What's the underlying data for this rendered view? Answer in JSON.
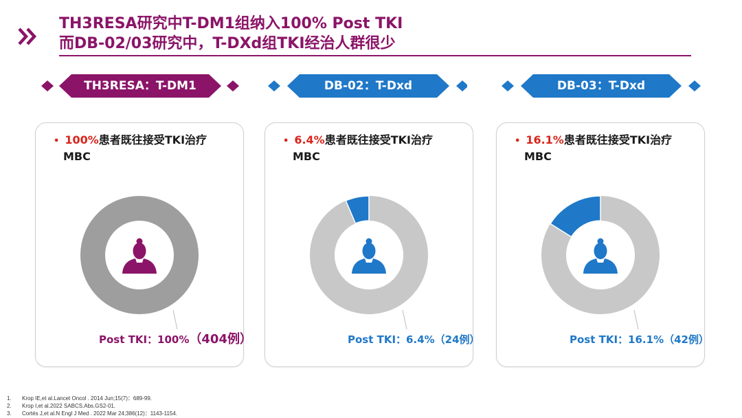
{
  "header": {
    "title_line1": "TH3RESA研究中T-DM1组纳入100%  Post TKI",
    "title_line2": "而DB-02/03研究中，T-DXd组TKI经治人群很少",
    "accent_color": "#8B1468"
  },
  "chart_data": [
    {
      "type": "pie",
      "banner": "TH3RESA：T-DM1",
      "bullet_pct": "100%",
      "bullet_text": "患者既往接受TKI治疗",
      "bullet_line2": "MBC",
      "slices": [
        {
          "label": "Post TKI",
          "value": 100
        }
      ],
      "post_label": "Post TKI：100%",
      "post_count": "（404例）",
      "color": "#8B1468",
      "ring_color": "#9E9E9E"
    },
    {
      "type": "pie",
      "banner": "DB-02：T-Dxd",
      "bullet_pct": "6.4%",
      "bullet_text": "患者既往接受TKI治疗",
      "bullet_line2": "MBC",
      "slices": [
        {
          "label": "Post TKI",
          "value": 6.4
        },
        {
          "label": "",
          "value": 93.6
        }
      ],
      "post_label": "Post TKI：6.4%（24例）",
      "post_count": "",
      "color": "#1F78C8",
      "ring_color": "#C8C8C8"
    },
    {
      "type": "pie",
      "banner": "DB-03：T-Dxd",
      "bullet_pct": "16.1%",
      "bullet_text": "患者既往接受TKI治疗",
      "bullet_line2": "MBC",
      "slices": [
        {
          "label": "Post TKI",
          "value": 16.1
        },
        {
          "label": "",
          "value": 83.9
        }
      ],
      "post_label": "Post TKI：16.1%（42例）",
      "post_count": "",
      "color": "#1F78C8",
      "ring_color": "#C8C8C8"
    }
  ],
  "references": [
    {
      "num": "1.",
      "text": "Krop IE,et  al.Lancet Oncol . 2014 Jun;15(7)：689-99."
    },
    {
      "num": "2.",
      "text": "Krop I,et al.2022 SABCS.Abs.GS2-01."
    },
    {
      "num": "3.",
      "text": "Cortés J,et al.N Engl J Med . 2022 Mar 24;386(12)：1143-1154."
    }
  ]
}
